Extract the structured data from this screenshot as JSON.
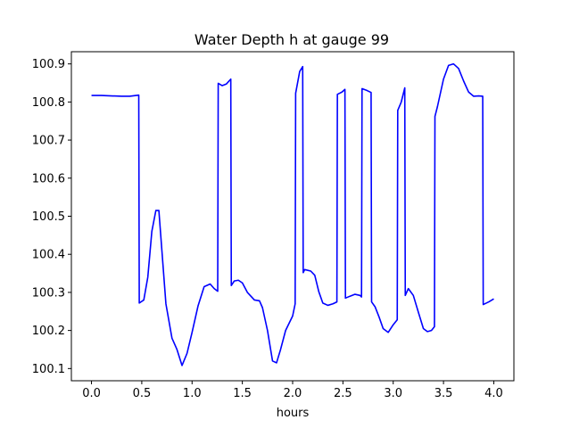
{
  "chart_data": {
    "type": "line",
    "title": "Water Depth h at gauge 99",
    "xlabel": "hours",
    "ylabel": "",
    "xlim": [
      -0.2,
      4.2
    ],
    "ylim": [
      100.068,
      100.932
    ],
    "x_ticks": [
      0.0,
      0.5,
      1.0,
      1.5,
      2.0,
      2.5,
      3.0,
      3.5,
      4.0
    ],
    "x_tick_labels": [
      "0.0",
      "0.5",
      "1.0",
      "1.5",
      "2.0",
      "2.5",
      "3.0",
      "3.5",
      "4.0"
    ],
    "y_ticks": [
      100.1,
      100.2,
      100.3,
      100.4,
      100.5,
      100.6,
      100.7,
      100.8,
      100.9
    ],
    "y_tick_labels": [
      "100.1",
      "100.2",
      "100.3",
      "100.4",
      "100.5",
      "100.6",
      "100.7",
      "100.8",
      "100.9"
    ],
    "grid": false,
    "line_color": "#0000ff",
    "series": [
      {
        "x": [
          0.0,
          0.1,
          0.2,
          0.3,
          0.38,
          0.47,
          0.475,
          0.52,
          0.56,
          0.6,
          0.64,
          0.67,
          0.7,
          0.74,
          0.8,
          0.85,
          0.9,
          0.95,
          1.0,
          1.06,
          1.12,
          1.18,
          1.22,
          1.255,
          1.26,
          1.3,
          1.34,
          1.385,
          1.39,
          1.42,
          1.46,
          1.5,
          1.55,
          1.62,
          1.67,
          1.7,
          1.75,
          1.8,
          1.84,
          1.88,
          1.93,
          2.0,
          2.025,
          2.03,
          2.07,
          2.1,
          2.105,
          2.12,
          2.18,
          2.22,
          2.26,
          2.3,
          2.35,
          2.4,
          2.44,
          2.445,
          2.49,
          2.52,
          2.525,
          2.57,
          2.62,
          2.67,
          2.685,
          2.69,
          2.74,
          2.78,
          2.785,
          2.82,
          2.86,
          2.9,
          2.95,
          3.0,
          3.04,
          3.045,
          3.08,
          3.115,
          3.12,
          3.15,
          3.2,
          3.25,
          3.3,
          3.34,
          3.38,
          3.41,
          3.415,
          3.44,
          3.5,
          3.55,
          3.6,
          3.65,
          3.7,
          3.75,
          3.8,
          3.85,
          3.89,
          3.895,
          3.95,
          4.0
        ],
        "y": [
          100.817,
          100.817,
          100.816,
          100.815,
          100.815,
          100.818,
          100.272,
          100.28,
          100.34,
          100.46,
          100.515,
          100.515,
          100.41,
          100.27,
          100.18,
          100.15,
          100.108,
          100.14,
          100.195,
          100.265,
          100.315,
          100.322,
          100.31,
          100.303,
          100.849,
          100.843,
          100.847,
          100.86,
          100.318,
          100.33,
          100.332,
          100.325,
          100.3,
          100.28,
          100.278,
          100.26,
          100.2,
          100.12,
          100.115,
          100.15,
          100.2,
          100.238,
          100.27,
          100.823,
          100.88,
          100.893,
          100.352,
          100.36,
          100.356,
          100.345,
          100.302,
          100.272,
          100.266,
          100.27,
          100.275,
          100.82,
          100.826,
          100.833,
          100.285,
          100.29,
          100.295,
          100.292,
          100.288,
          100.835,
          100.83,
          100.825,
          100.275,
          100.262,
          100.235,
          100.205,
          100.195,
          100.215,
          100.228,
          100.778,
          100.8,
          100.837,
          100.292,
          100.31,
          100.292,
          100.248,
          100.205,
          100.197,
          100.2,
          100.21,
          100.762,
          100.788,
          100.86,
          100.896,
          100.9,
          100.888,
          100.855,
          100.826,
          100.815,
          100.816,
          100.815,
          100.268,
          100.275,
          100.283
        ]
      }
    ]
  }
}
